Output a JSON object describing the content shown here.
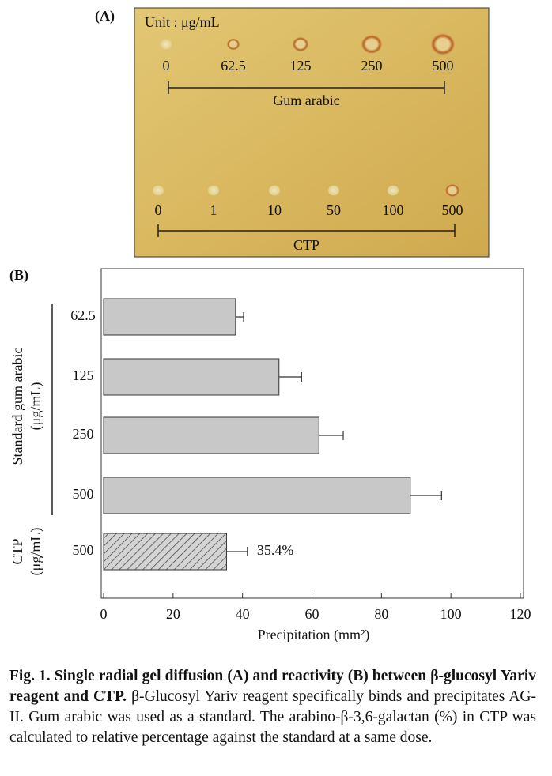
{
  "panel_a": {
    "label": "(A)",
    "unit": "Unit : μg/mL",
    "rows": [
      {
        "concentrations": [
          "0",
          "62.5",
          "125",
          "250",
          "500"
        ],
        "label": "Gum arabic"
      },
      {
        "concentrations": [
          "0",
          "1",
          "10",
          "50",
          "100",
          "500"
        ],
        "label": "CTP"
      }
    ]
  },
  "chart_data": {
    "type": "hbar",
    "panel_label": "(B)",
    "categories": [
      "62.5",
      "125",
      "250",
      "500",
      "500"
    ],
    "values": [
      38,
      50.5,
      62,
      88.3,
      35.4
    ],
    "errors": [
      2.3,
      6.5,
      7,
      9,
      6
    ],
    "hatched": [
      false,
      false,
      false,
      false,
      true
    ],
    "color": "#c8c8c8",
    "groups": [
      {
        "lines": [
          "Standard gum arabic",
          "(μg/mL)"
        ],
        "members": [
          0,
          1,
          2,
          3
        ]
      },
      {
        "lines": [
          "CTP",
          "(μg/mL)"
        ],
        "members": [
          4
        ]
      }
    ],
    "annotations": [
      {
        "index": 4,
        "text": "35.4%"
      }
    ],
    "xlabel": "Precipitation (mm²)",
    "xlim": [
      0,
      120
    ],
    "xticks": [
      0,
      20,
      40,
      60,
      80,
      100,
      120
    ]
  },
  "caption": {
    "bold": "Fig. 1. Single radial gel diffusion (A) and reactivity (B) between β-glucosyl Yariv reagent and CTP.",
    "text": "β-Glucosyl Yariv reagent specifically binds and precipitates AG-II. Gum arabic was used as a standard. The arabino-β-3,6-galactan (%) in CTP was calculated to relative percentage against the standard at a same dose."
  }
}
